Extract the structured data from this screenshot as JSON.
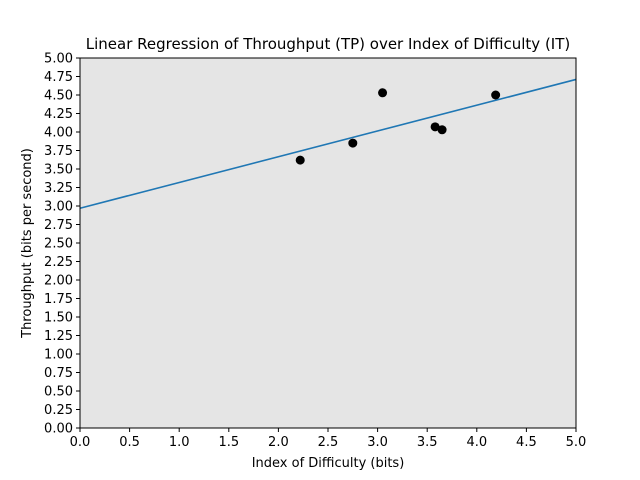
{
  "chart_data": {
    "type": "scatter",
    "title": "Linear Regression of Throughput (TP) over Index of Difficulty (IT)",
    "xlabel": "Index of Difficulty (bits)",
    "ylabel": "Throughput (bits per second)",
    "xlim": [
      0,
      5
    ],
    "ylim": [
      0,
      5
    ],
    "xticks": [
      "0.0",
      "0.5",
      "1.0",
      "1.5",
      "2.0",
      "2.5",
      "3.0",
      "3.5",
      "4.0",
      "4.5",
      "5.0"
    ],
    "yticks": [
      "0.00",
      "0.25",
      "0.50",
      "0.75",
      "1.00",
      "1.25",
      "1.50",
      "1.75",
      "2.00",
      "2.25",
      "2.50",
      "2.75",
      "3.00",
      "3.25",
      "3.50",
      "3.75",
      "4.00",
      "4.25",
      "4.50",
      "4.75",
      "5.00"
    ],
    "grid": false,
    "legend": "none",
    "points": [
      {
        "x": 2.22,
        "y": 3.62
      },
      {
        "x": 2.75,
        "y": 3.85
      },
      {
        "x": 3.05,
        "y": 4.53
      },
      {
        "x": 3.58,
        "y": 4.07
      },
      {
        "x": 3.65,
        "y": 4.03
      },
      {
        "x": 4.19,
        "y": 4.5
      }
    ],
    "regression": {
      "x": [
        0,
        5
      ],
      "y": [
        2.97,
        4.71
      ]
    },
    "colors": {
      "background": "#e5e5e5",
      "points": "#000000",
      "line": "#1f77b4"
    }
  }
}
